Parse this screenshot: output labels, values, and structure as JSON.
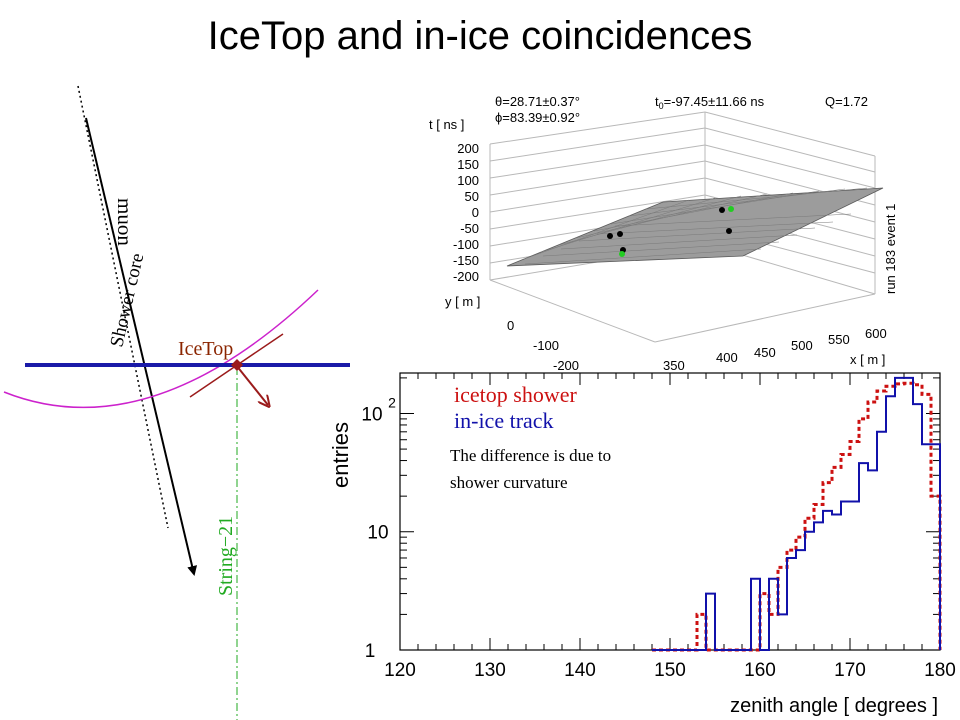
{
  "slide": {
    "title": "IceTop and in-ice coincidences"
  },
  "diagram": {
    "labels": {
      "muon": "muon",
      "shower_core": "Shower core",
      "icetop": "IceTop",
      "string": "String−21"
    },
    "colors": {
      "surface": "#1a1aa8",
      "curvature": "#cc22cc",
      "muon": "#000000",
      "string": "#22aa22",
      "icetop_label": "#8b2500",
      "arrow": "#9b1b1b"
    }
  },
  "event_display": {
    "header": {
      "theta": "θ=28.71±0.37°",
      "phi": "ϕ=83.39±0.92°",
      "t0": "t",
      "t0_sub": "0",
      "t0_rest": "=-97.45±11.66 ns",
      "q": "Q=1.72"
    },
    "z_axis_label": "t [ ns ]",
    "z_ticks": [
      "200",
      "150",
      "100",
      "50",
      "0",
      "-50",
      "-100",
      "-150",
      "-200"
    ],
    "y_axis_label": "y [ m ]",
    "y_ticks": [
      "0",
      "-100",
      "-200"
    ],
    "x_axis_label": "x [ m ]",
    "x_ticks": [
      "350",
      "400",
      "450",
      "500",
      "550",
      "600"
    ],
    "run_label": "run 183  event 1"
  },
  "chart_data": {
    "type": "histogram",
    "xlabel": "zenith angle [ degrees ]",
    "ylabel": "entries",
    "xlim": [
      120,
      180
    ],
    "ylim": [
      1,
      220
    ],
    "yscale": "log",
    "x_ticks": [
      "120",
      "130",
      "140",
      "150",
      "160",
      "170",
      "180"
    ],
    "y_ticks": [
      {
        "value": 1,
        "base": "1",
        "exp": ""
      },
      {
        "value": 10,
        "base": "10",
        "exp": ""
      },
      {
        "value": 100,
        "base": "10",
        "exp": "2"
      }
    ],
    "legend": [
      "icetop shower",
      "in-ice track"
    ],
    "annotation": [
      "The difference is due to",
      "shower curvature"
    ],
    "bin_edges": [
      148,
      149,
      150,
      151,
      152,
      153,
      154,
      155,
      156,
      157,
      158,
      159,
      160,
      161,
      162,
      163,
      164,
      165,
      166,
      167,
      168,
      169,
      170,
      171,
      172,
      173,
      174,
      175,
      176,
      177,
      178,
      179,
      180
    ],
    "series": [
      {
        "name": "icetop shower",
        "color": "#cc1111",
        "dash": true,
        "values": [
          1,
          1,
          1,
          1,
          1,
          2,
          1,
          1,
          1,
          1,
          1,
          1,
          3,
          2,
          5,
          7,
          9,
          13,
          17,
          26,
          35,
          45,
          58,
          90,
          125,
          155,
          170,
          178,
          180,
          175,
          145,
          20
        ]
      },
      {
        "name": "in-ice track",
        "color": "#1111aa",
        "dash": false,
        "values": [
          1,
          1,
          1,
          1,
          1,
          1,
          3,
          1,
          1,
          1,
          1,
          4,
          1,
          4,
          2,
          6,
          7,
          10,
          12,
          15,
          14,
          18,
          18,
          38,
          33,
          70,
          140,
          200,
          200,
          120,
          55,
          55
        ]
      }
    ]
  }
}
